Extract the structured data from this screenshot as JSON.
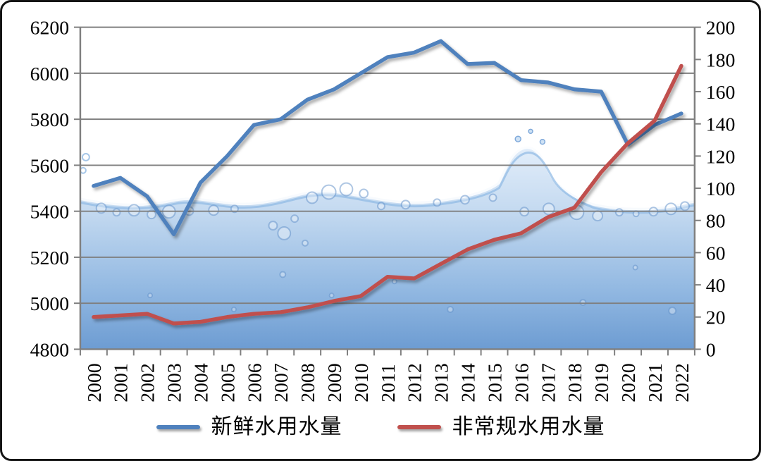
{
  "chart_data": {
    "type": "line",
    "title": "",
    "categories": [
      "2000",
      "2001",
      "2002",
      "2003",
      "2004",
      "2005",
      "2006",
      "2007",
      "2008",
      "2009",
      "2010",
      "2011",
      "2012",
      "2013",
      "2014",
      "2015",
      "2016",
      "2017",
      "2018",
      "2019",
      "2020",
      "2021",
      "2022"
    ],
    "series": [
      {
        "name": "新鲜水用水量",
        "axis": "left",
        "color": "#4f81bd",
        "values": [
          5510,
          5545,
          5465,
          5300,
          5525,
          5640,
          5775,
          5800,
          5885,
          5930,
          6000,
          6070,
          6090,
          6140,
          6040,
          6045,
          5970,
          5960,
          5930,
          5920,
          5690,
          5775,
          5825
        ]
      },
      {
        "name": "非常规水用水量",
        "axis": "right",
        "color": "#c0504d",
        "values": [
          20,
          21,
          22,
          16,
          17,
          20,
          22,
          23,
          26,
          30,
          33,
          45,
          44,
          53,
          62,
          68,
          72,
          82,
          88,
          110,
          128,
          142,
          176
        ]
      }
    ],
    "left_axis": {
      "min": 4800,
      "max": 6200,
      "step": 200,
      "tick_labels": [
        "4800",
        "5000",
        "5200",
        "5400",
        "5600",
        "5800",
        "6000",
        "6200"
      ]
    },
    "right_axis": {
      "min": 0,
      "max": 200,
      "step": 20,
      "tick_labels": [
        "0",
        "20",
        "40",
        "60",
        "80",
        "100",
        "120",
        "140",
        "160",
        "180",
        "200"
      ]
    },
    "grid": {
      "horizontal": true,
      "color": "#7f7f7f"
    },
    "legend_position": "bottom-center"
  },
  "legend": {
    "items": [
      {
        "label": "新鲜水用水量",
        "color": "#4f81bd"
      },
      {
        "label": "非常规水用水量",
        "color": "#c0504d"
      }
    ]
  }
}
